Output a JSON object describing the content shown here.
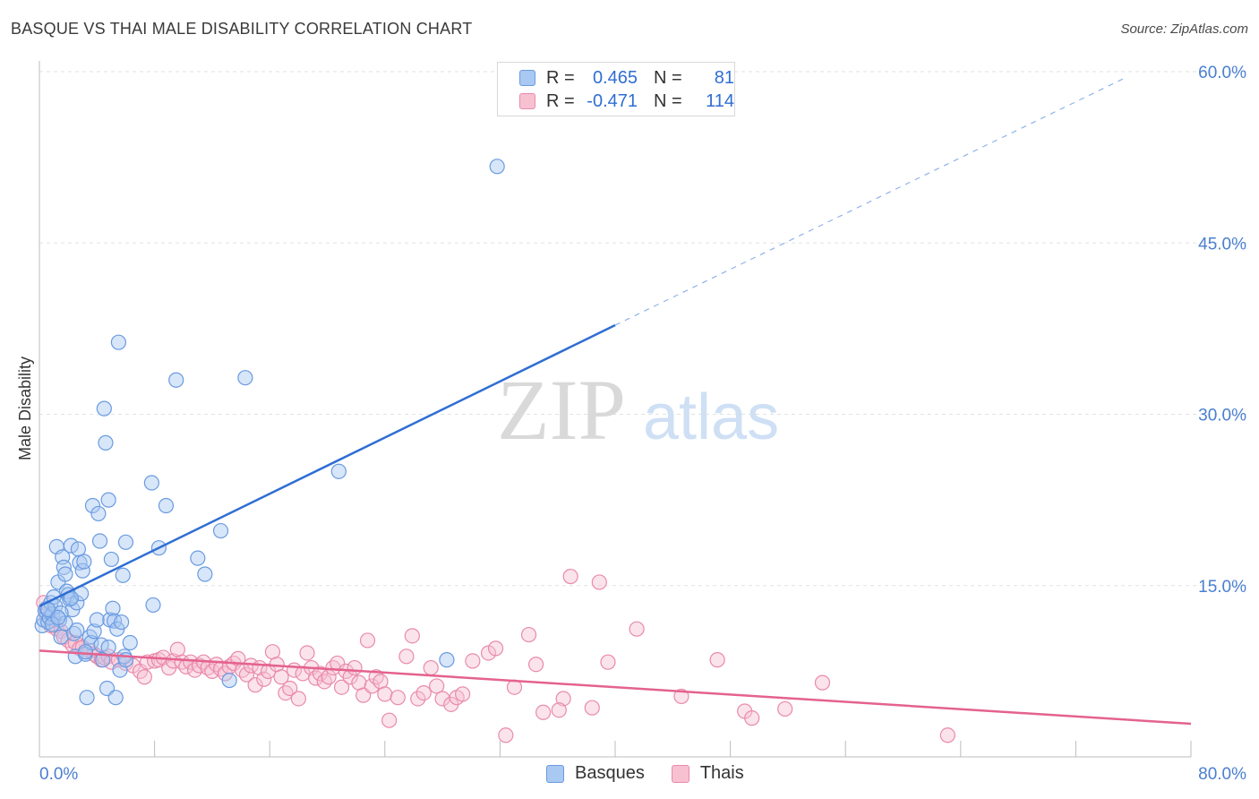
{
  "title": "BASQUE VS THAI MALE DISABILITY CORRELATION CHART",
  "source": "Source: ZipAtlas.com",
  "watermark": {
    "part1": "ZIP",
    "part2": "atlas"
  },
  "legend": {
    "rows": [
      {
        "r_label": "R =",
        "r_value": "0.465",
        "n_label": "N =",
        "n_value": "81",
        "color": "#a9c8f2",
        "border": "#6a9be0"
      },
      {
        "r_label": "R =",
        "r_value": "-0.471",
        "n_label": "N =",
        "n_value": "114",
        "color": "#f7c1d2",
        "border": "#e98aab"
      }
    ]
  },
  "bottom_legend": {
    "basques": "Basques",
    "thais": "Thais"
  },
  "chart_data": {
    "type": "scatter",
    "xlabel": "",
    "ylabel": "Male Disability",
    "xlim": [
      0,
      80
    ],
    "ylim": [
      0,
      60
    ],
    "x_tick_labels": [
      "0.0%",
      "80.0%"
    ],
    "y_ticks": [
      15,
      30,
      45,
      60
    ],
    "y_tick_labels": [
      "15.0%",
      "30.0%",
      "45.0%",
      "60.0%"
    ],
    "grid": "horizontal dashed",
    "colors": {
      "basques": "#6a9be0",
      "thais": "#e98aab",
      "basque_line": "#2f6ed3",
      "thai_line": "#e4628f"
    },
    "series": [
      {
        "name": "Basques",
        "points": [
          [
            0.2,
            11.5
          ],
          [
            0.3,
            12.0
          ],
          [
            0.4,
            12.8
          ],
          [
            0.5,
            13.0
          ],
          [
            0.6,
            11.8
          ],
          [
            0.7,
            12.2
          ],
          [
            0.8,
            13.5
          ],
          [
            0.9,
            12.5
          ],
          [
            1.0,
            14.0
          ],
          [
            1.1,
            13.2
          ],
          [
            1.2,
            18.4
          ],
          [
            1.3,
            15.3
          ],
          [
            1.4,
            12.0
          ],
          [
            1.5,
            10.5
          ],
          [
            1.6,
            17.5
          ],
          [
            1.7,
            16.6
          ],
          [
            1.8,
            16.0
          ],
          [
            1.9,
            14.5
          ],
          [
            2.0,
            14.2
          ],
          [
            2.1,
            13.8
          ],
          [
            2.2,
            18.5
          ],
          [
            2.3,
            12.9
          ],
          [
            2.4,
            10.8
          ],
          [
            2.5,
            8.8
          ],
          [
            2.6,
            13.5
          ],
          [
            2.7,
            18.2
          ],
          [
            2.8,
            17.0
          ],
          [
            2.9,
            14.3
          ],
          [
            3.0,
            16.3
          ],
          [
            3.1,
            17.1
          ],
          [
            3.2,
            9.0
          ],
          [
            3.3,
            5.2
          ],
          [
            3.5,
            10.5
          ],
          [
            3.6,
            10.0
          ],
          [
            3.7,
            22.0
          ],
          [
            3.8,
            11.0
          ],
          [
            4.0,
            12.0
          ],
          [
            4.1,
            21.3
          ],
          [
            4.2,
            18.9
          ],
          [
            4.3,
            9.8
          ],
          [
            4.4,
            8.5
          ],
          [
            4.5,
            30.5
          ],
          [
            4.6,
            27.5
          ],
          [
            4.7,
            6.0
          ],
          [
            4.8,
            22.5
          ],
          [
            4.9,
            12.0
          ],
          [
            5.0,
            17.3
          ],
          [
            5.1,
            13.0
          ],
          [
            5.2,
            11.9
          ],
          [
            5.3,
            5.2
          ],
          [
            5.4,
            11.2
          ],
          [
            5.5,
            36.3
          ],
          [
            5.6,
            7.6
          ],
          [
            5.7,
            11.8
          ],
          [
            5.8,
            15.9
          ],
          [
            5.9,
            8.8
          ],
          [
            6.0,
            18.8
          ],
          [
            6.3,
            10.0
          ],
          [
            7.8,
            24.0
          ],
          [
            7.9,
            13.3
          ],
          [
            8.3,
            18.3
          ],
          [
            8.8,
            22.0
          ],
          [
            9.5,
            33.0
          ],
          [
            11.0,
            17.4
          ],
          [
            11.5,
            16.0
          ],
          [
            12.6,
            19.8
          ],
          [
            13.2,
            6.7
          ],
          [
            14.3,
            33.2
          ],
          [
            20.8,
            25.0
          ],
          [
            28.3,
            8.5
          ],
          [
            31.8,
            51.7
          ],
          [
            1.5,
            12.6
          ],
          [
            2.2,
            13.9
          ],
          [
            0.9,
            11.6
          ],
          [
            1.8,
            11.7
          ],
          [
            3.2,
            9.2
          ],
          [
            2.6,
            11.1
          ],
          [
            0.6,
            12.9
          ],
          [
            1.3,
            12.2
          ],
          [
            4.8,
            9.6
          ],
          [
            6.0,
            8.5
          ]
        ]
      },
      {
        "name": "Thais",
        "points": [
          [
            0.3,
            13.5
          ],
          [
            0.5,
            12.5
          ],
          [
            0.8,
            11.5
          ],
          [
            1.0,
            12.0
          ],
          [
            1.2,
            11.2
          ],
          [
            1.5,
            11.0
          ],
          [
            1.7,
            10.5
          ],
          [
            2.0,
            10.2
          ],
          [
            2.3,
            9.8
          ],
          [
            2.5,
            10.0
          ],
          [
            2.8,
            9.5
          ],
          [
            3.0,
            9.6
          ],
          [
            3.2,
            9.2
          ],
          [
            3.5,
            9.3
          ],
          [
            3.8,
            9.0
          ],
          [
            4.0,
            8.8
          ],
          [
            4.3,
            8.5
          ],
          [
            4.5,
            8.7
          ],
          [
            4.8,
            8.8
          ],
          [
            5.0,
            8.3
          ],
          [
            5.5,
            8.5
          ],
          [
            6.0,
            8.2
          ],
          [
            6.5,
            8.0
          ],
          [
            7.0,
            7.5
          ],
          [
            7.3,
            7.0
          ],
          [
            7.5,
            8.3
          ],
          [
            8.0,
            8.4
          ],
          [
            8.3,
            8.5
          ],
          [
            8.6,
            8.7
          ],
          [
            9.0,
            7.8
          ],
          [
            9.3,
            8.4
          ],
          [
            9.6,
            9.4
          ],
          [
            9.9,
            8.3
          ],
          [
            10.2,
            7.9
          ],
          [
            10.5,
            8.3
          ],
          [
            10.8,
            7.6
          ],
          [
            11.1,
            8.0
          ],
          [
            11.4,
            8.3
          ],
          [
            11.7,
            7.8
          ],
          [
            12.0,
            7.5
          ],
          [
            12.3,
            8.1
          ],
          [
            12.6,
            7.7
          ],
          [
            12.9,
            7.3
          ],
          [
            13.2,
            7.9
          ],
          [
            13.5,
            8.2
          ],
          [
            13.8,
            8.6
          ],
          [
            14.1,
            7.6
          ],
          [
            14.4,
            7.2
          ],
          [
            14.7,
            8.0
          ],
          [
            15.0,
            6.3
          ],
          [
            15.3,
            7.8
          ],
          [
            15.6,
            6.8
          ],
          [
            15.9,
            7.5
          ],
          [
            16.2,
            9.2
          ],
          [
            16.5,
            8.1
          ],
          [
            16.8,
            7.0
          ],
          [
            17.1,
            5.6
          ],
          [
            17.4,
            6.0
          ],
          [
            17.7,
            7.6
          ],
          [
            18.0,
            5.1
          ],
          [
            18.3,
            7.3
          ],
          [
            18.6,
            9.1
          ],
          [
            18.9,
            7.8
          ],
          [
            19.2,
            6.9
          ],
          [
            19.5,
            7.3
          ],
          [
            19.8,
            6.6
          ],
          [
            20.1,
            7.0
          ],
          [
            20.4,
            7.8
          ],
          [
            20.7,
            8.2
          ],
          [
            21.0,
            6.1
          ],
          [
            21.3,
            7.5
          ],
          [
            21.6,
            7.0
          ],
          [
            21.9,
            7.8
          ],
          [
            22.2,
            6.5
          ],
          [
            22.5,
            5.4
          ],
          [
            22.8,
            10.2
          ],
          [
            23.1,
            6.2
          ],
          [
            23.4,
            7.0
          ],
          [
            23.7,
            6.6
          ],
          [
            24.0,
            5.5
          ],
          [
            24.3,
            3.2
          ],
          [
            24.9,
            5.2
          ],
          [
            25.5,
            8.8
          ],
          [
            25.9,
            10.6
          ],
          [
            26.3,
            5.1
          ],
          [
            26.7,
            5.6
          ],
          [
            27.2,
            7.8
          ],
          [
            27.6,
            6.2
          ],
          [
            28.0,
            5.1
          ],
          [
            28.6,
            4.6
          ],
          [
            29.0,
            5.2
          ],
          [
            29.4,
            5.5
          ],
          [
            30.1,
            8.4
          ],
          [
            31.2,
            9.1
          ],
          [
            31.7,
            9.5
          ],
          [
            33.0,
            6.1
          ],
          [
            34.5,
            8.1
          ],
          [
            35.0,
            3.9
          ],
          [
            36.4,
            5.1
          ],
          [
            36.9,
            15.8
          ],
          [
            38.4,
            4.3
          ],
          [
            38.9,
            15.3
          ],
          [
            41.5,
            11.2
          ],
          [
            44.6,
            5.3
          ],
          [
            47.1,
            8.5
          ],
          [
            49.0,
            4.0
          ],
          [
            49.5,
            3.4
          ],
          [
            51.8,
            4.2
          ],
          [
            54.4,
            6.5
          ],
          [
            63.1,
            1.9
          ],
          [
            32.4,
            1.9
          ],
          [
            34.0,
            10.7
          ],
          [
            36.1,
            4.1
          ],
          [
            39.5,
            8.3
          ]
        ]
      }
    ],
    "trend_lines": [
      {
        "name": "Basques",
        "x": [
          0,
          40
        ],
        "y": [
          13.2,
          37.8
        ],
        "extended_to": [
          75.5,
          59.5
        ],
        "style": "solid then dashed"
      },
      {
        "name": "Thais",
        "x": [
          0,
          80
        ],
        "y": [
          9.3,
          2.9
        ],
        "style": "solid"
      }
    ]
  }
}
